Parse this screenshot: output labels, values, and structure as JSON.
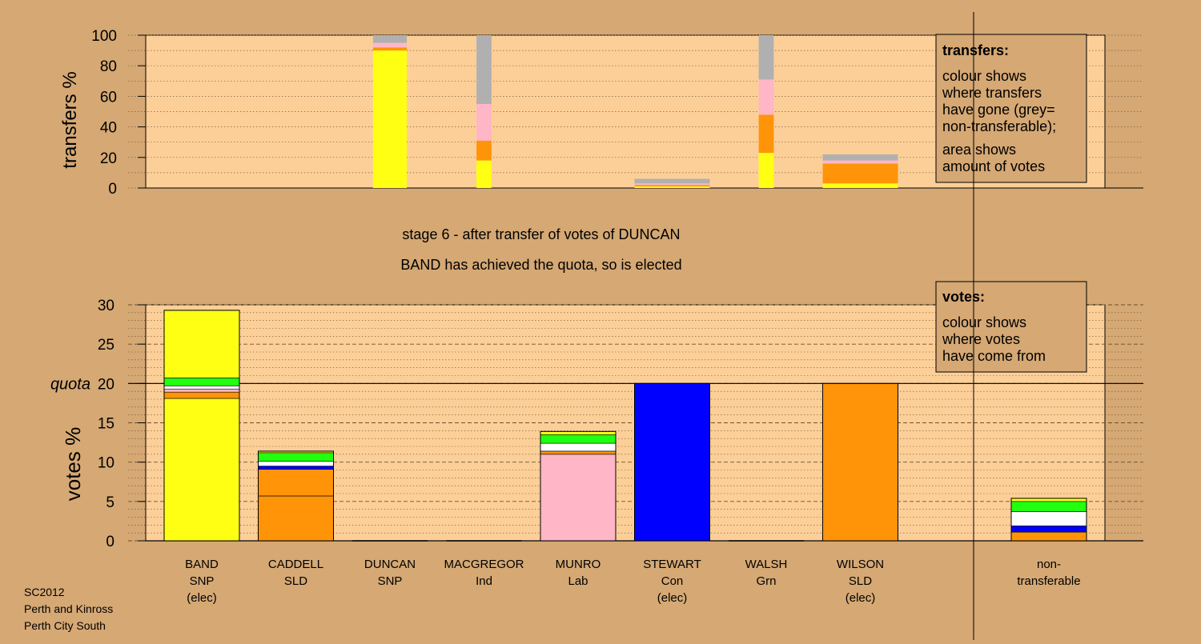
{
  "colors": {
    "background": "#d5a874",
    "plot_area": "#fdcf98",
    "SNP": "#ffff14",
    "SLD": "#ff9408",
    "Lab": "#ffb6c6",
    "Con": "#0000ff",
    "Grn": "#22ff11",
    "Ind": "#ffffff",
    "non-transferable": "#b0b0b0"
  },
  "chart_data": [
    {
      "type": "bar",
      "stacked": true,
      "ylabel": "transfers %",
      "ylim": [
        0,
        100
      ],
      "yticks": [
        0,
        20,
        40,
        60,
        80,
        100
      ],
      "grid": true,
      "categories": [
        "BAND",
        "CADDELL",
        "DUNCAN",
        "MACGREGOR",
        "MUNRO",
        "STEWART",
        "WALSH",
        "WILSON"
      ],
      "bars": [
        {
          "category": "BAND",
          "total": 0,
          "segments": []
        },
        {
          "category": "CADDELL",
          "total": 0,
          "segments": []
        },
        {
          "category": "DUNCAN",
          "total": 100,
          "width_share": 0.45,
          "segments": [
            {
              "party": "SNP",
              "value": 90
            },
            {
              "party": "SLD",
              "value": 2
            },
            {
              "party": "Lab",
              "value": 3
            },
            {
              "party": "non-transferable",
              "value": 5
            }
          ]
        },
        {
          "category": "MACGREGOR",
          "total": 100,
          "width_share": 0.2,
          "segments": [
            {
              "party": "SNP",
              "value": 18
            },
            {
              "party": "SLD",
              "value": 13
            },
            {
              "party": "Lab",
              "value": 24
            },
            {
              "party": "non-transferable",
              "value": 45
            }
          ]
        },
        {
          "category": "MUNRO",
          "total": 0,
          "segments": []
        },
        {
          "category": "STEWART",
          "total": 6,
          "width_share": 1.0,
          "segments": [
            {
              "party": "SNP",
              "value": 1
            },
            {
              "party": "SLD",
              "value": 1
            },
            {
              "party": "Lab",
              "value": 1
            },
            {
              "party": "non-transferable",
              "value": 3
            }
          ]
        },
        {
          "category": "WALSH",
          "total": 100,
          "width_share": 0.2,
          "segments": [
            {
              "party": "SNP",
              "value": 23
            },
            {
              "party": "SLD",
              "value": 25
            },
            {
              "party": "Lab",
              "value": 23
            },
            {
              "party": "non-transferable",
              "value": 29
            }
          ]
        },
        {
          "category": "WILSON",
          "total": 22,
          "width_share": 1.0,
          "segments": [
            {
              "party": "SNP",
              "value": 3
            },
            {
              "party": "SLD",
              "value": 13
            },
            {
              "party": "Lab",
              "value": 2
            },
            {
              "party": "non-transferable",
              "value": 4
            }
          ]
        }
      ]
    },
    {
      "type": "bar",
      "stacked": true,
      "ylabel": "votes %",
      "ylim": [
        0,
        30
      ],
      "yticks": [
        0,
        5,
        10,
        15,
        20,
        25,
        30
      ],
      "quota": 20,
      "quota_label": "quota",
      "grid": true,
      "categories": [
        {
          "name": "BAND",
          "party": "SNP",
          "status": "(elec)"
        },
        {
          "name": "CADDELL",
          "party": "SLD",
          "status": ""
        },
        {
          "name": "DUNCAN",
          "party": "SNP",
          "status": ""
        },
        {
          "name": "MACGREGOR",
          "party": "Ind",
          "status": ""
        },
        {
          "name": "MUNRO",
          "party": "Lab",
          "status": ""
        },
        {
          "name": "STEWART",
          "party": "Con",
          "status": "(elec)"
        },
        {
          "name": "WALSH",
          "party": "Grn",
          "status": ""
        },
        {
          "name": "WILSON",
          "party": "SLD",
          "status": "(elec)"
        }
      ],
      "non_transferable": {
        "label_1": "non-",
        "label_2": "transferable"
      },
      "bars": [
        {
          "category": "BAND",
          "segments": [
            {
              "party": "SNP",
              "value": 18.1
            },
            {
              "party": "SLD",
              "value": 0.8
            },
            {
              "party": "Lab",
              "value": 0.4
            },
            {
              "party": "Ind",
              "value": 0.4
            },
            {
              "party": "Grn",
              "value": 1.0
            },
            {
              "party": "SNP",
              "value": 8.6
            }
          ]
        },
        {
          "category": "CADDELL",
          "segments": [
            {
              "party": "SLD",
              "value": 5.7
            },
            {
              "party": "SLD",
              "value": 3.4
            },
            {
              "party": "Con",
              "value": 0.4
            },
            {
              "party": "Ind",
              "value": 0.6
            },
            {
              "party": "Grn",
              "value": 1.1
            },
            {
              "party": "SNP",
              "value": 0.2
            }
          ]
        },
        {
          "category": "DUNCAN",
          "segments": []
        },
        {
          "category": "MACGREGOR",
          "segments": []
        },
        {
          "category": "MUNRO",
          "segments": [
            {
              "party": "Lab",
              "value": 11.0
            },
            {
              "party": "SLD",
              "value": 0.4
            },
            {
              "party": "Ind",
              "value": 1.0
            },
            {
              "party": "Grn",
              "value": 1.1
            },
            {
              "party": "SNP",
              "value": 0.4
            }
          ]
        },
        {
          "category": "STEWART",
          "segments": [
            {
              "party": "Con",
              "value": 20.0
            }
          ]
        },
        {
          "category": "WALSH",
          "segments": []
        },
        {
          "category": "WILSON",
          "segments": [
            {
              "party": "SLD",
              "value": 20.0
            }
          ]
        },
        {
          "category": "non-transferable",
          "segments": [
            {
              "party": "SLD",
              "value": 1.1
            },
            {
              "party": "Con",
              "value": 0.8
            },
            {
              "party": "Ind",
              "value": 1.8
            },
            {
              "party": "Grn",
              "value": 1.3
            },
            {
              "party": "SNP",
              "value": 0.4
            }
          ]
        }
      ]
    }
  ],
  "stage_title": "stage 6 - after transfer of votes of DUNCAN",
  "stage_subtitle": "BAND has achieved the quota, so is elected",
  "legend_transfers": {
    "title": "transfers:",
    "lines": [
      "colour shows",
      "where transfers",
      "have gone (grey=",
      "non-transferable);"
    ],
    "lines2": [
      "area shows",
      "amount of votes"
    ]
  },
  "legend_votes": {
    "title": "votes:",
    "lines": [
      "colour shows",
      "where votes",
      "have come from"
    ]
  },
  "footer": [
    "SC2012",
    "Perth and Kinross",
    "Perth City South"
  ]
}
